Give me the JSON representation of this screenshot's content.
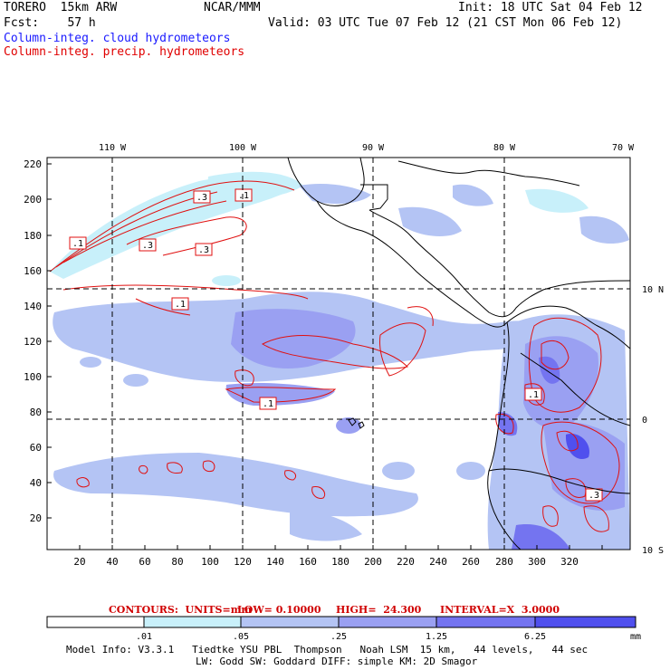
{
  "header": {
    "model": "TORERO  15km ARW",
    "center": "NCAR/MMM",
    "init": "Init: 18 UTC Sat 04 Feb 12",
    "fcst": "Fcst:    57 h",
    "valid": "Valid: 03 UTC Tue 07 Feb 12 (21 CST Mon 06 Feb 12)",
    "legend_cloud": "Column-integ. cloud hydrometeors",
    "legend_precip": "Column-integ. precip. hydrometeors"
  },
  "map": {
    "lon_labels": [
      "110 W",
      "100 W",
      "90 W",
      "80 W",
      "70 W"
    ],
    "lat_labels": [
      "10 N",
      "0",
      "10 S"
    ],
    "x_ticks": [
      "20",
      "40",
      "60",
      "80",
      "100",
      "120",
      "140",
      "160",
      "180",
      "200",
      "220",
      "240",
      "260",
      "280",
      "300",
      "320"
    ],
    "y_ticks": [
      "220",
      "200",
      "180",
      "160",
      "140",
      "120",
      "100",
      "80",
      "60",
      "40",
      "20"
    ],
    "contour_labels": [
      ".1",
      ".3",
      ".1",
      ".3",
      ".3",
      ".1",
      ".1",
      ".1",
      ".3"
    ]
  },
  "contour_info": {
    "units_label": "CONTOURS:  UNITS=mm",
    "low": "LOW= 0.10000",
    "high": "HIGH=  24.300",
    "interval": "INTERVAL=X  3.0000"
  },
  "colorbar": {
    "ticks": [
      ".01",
      ".05",
      ".25",
      "1.25",
      "6.25"
    ],
    "units": "mm",
    "colors": [
      "#ffffff",
      "#c8f0fa",
      "#b4c4f4",
      "#9aa0f2",
      "#7474f0",
      "#5050ee",
      "#2020ea"
    ]
  },
  "footer": {
    "line1": "Model Info: V3.3.1   Tiedtke YSU PBL  Thompson   Noah LSM  15 km,   44 levels,   44 sec",
    "line2": "LW: Godd SW: Goddard DIFF: simple KM: 2D Smagor"
  }
}
